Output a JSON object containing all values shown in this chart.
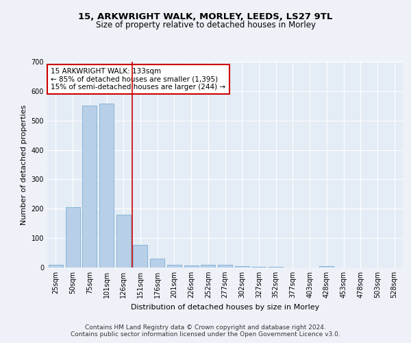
{
  "title": "15, ARKWRIGHT WALK, MORLEY, LEEDS, LS27 9TL",
  "subtitle": "Size of property relative to detached houses in Morley",
  "xlabel": "Distribution of detached houses by size in Morley",
  "ylabel": "Number of detached properties",
  "categories": [
    "25sqm",
    "50sqm",
    "75sqm",
    "101sqm",
    "126sqm",
    "151sqm",
    "176sqm",
    "201sqm",
    "226sqm",
    "252sqm",
    "277sqm",
    "302sqm",
    "327sqm",
    "352sqm",
    "377sqm",
    "403sqm",
    "428sqm",
    "453sqm",
    "478sqm",
    "503sqm",
    "528sqm"
  ],
  "values": [
    10,
    205,
    550,
    557,
    180,
    78,
    30,
    10,
    7,
    10,
    10,
    5,
    3,
    3,
    0,
    0,
    5,
    0,
    0,
    0,
    0
  ],
  "bar_color": "#b8cfe8",
  "bar_edge_color": "#7aafd4",
  "vline_x": 4.5,
  "vline_color": "#cc0000",
  "ylim": [
    0,
    700
  ],
  "yticks": [
    0,
    100,
    200,
    300,
    400,
    500,
    600,
    700
  ],
  "annotation_box_text": "15 ARKWRIGHT WALK: 133sqm\n← 85% of detached houses are smaller (1,395)\n15% of semi-detached houses are larger (244) →",
  "footer_text": "Contains HM Land Registry data © Crown copyright and database right 2024.\nContains public sector information licensed under the Open Government Licence v3.0.",
  "background_color": "#eef2f8",
  "plot_bg_color": "#e4ecf5",
  "grid_color": "#ffffff",
  "title_fontsize": 9.5,
  "subtitle_fontsize": 8.5,
  "xlabel_fontsize": 8,
  "ylabel_fontsize": 8,
  "tick_fontsize": 7,
  "annotation_fontsize": 7.5,
  "footer_fontsize": 6.5
}
